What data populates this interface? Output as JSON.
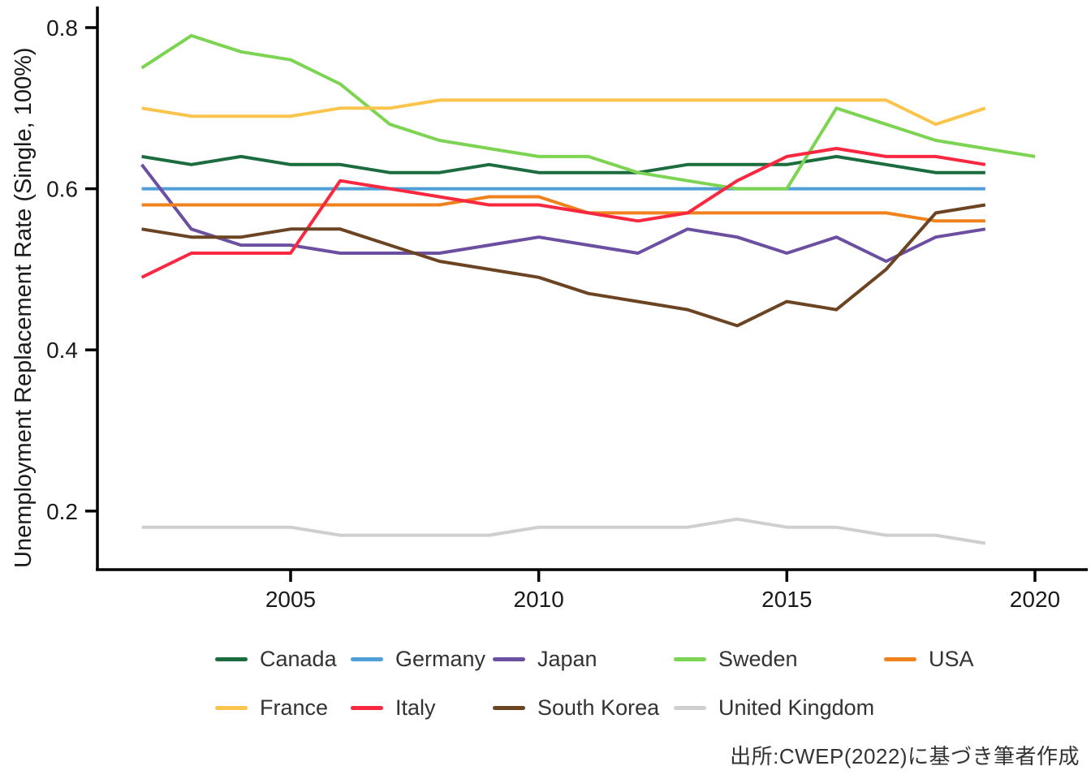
{
  "caption": "出所:CWEP(2022)に基づき筆者作成",
  "legend": {
    "rows": [
      [
        "Canada",
        "Germany",
        "Japan",
        "Sweden",
        "USA"
      ],
      [
        "France",
        "Italy",
        "South Korea",
        "United Kingdom"
      ]
    ]
  },
  "chart_data": {
    "type": "line",
    "title": "",
    "xlabel": "",
    "ylabel": "Unemployment Replacement Rate (Single, 100%)",
    "grid": false,
    "legend_position": "bottom",
    "xlim": [
      2001.1,
      2021.1
    ],
    "ylim": [
      0.13,
      0.83
    ],
    "x_ticks": [
      2005,
      2010,
      2015,
      2020
    ],
    "y_ticks": [
      0.2,
      0.4,
      0.6,
      0.8
    ],
    "start_year": 2002,
    "axis_color": "#000000",
    "series": [
      {
        "name": "Canada",
        "color": "#1b6d3f",
        "values": [
          0.64,
          0.63,
          0.64,
          0.63,
          0.63,
          0.62,
          0.62,
          0.63,
          0.62,
          0.62,
          0.62,
          0.63,
          0.63,
          0.63,
          0.64,
          0.63,
          0.62,
          0.62
        ]
      },
      {
        "name": "Germany",
        "color": "#4f9ed6",
        "values": [
          0.6,
          0.6,
          0.6,
          0.6,
          0.6,
          0.6,
          0.6,
          0.6,
          0.6,
          0.6,
          0.6,
          0.6,
          0.6,
          0.6,
          0.6,
          0.6,
          0.6,
          0.6
        ]
      },
      {
        "name": "Japan",
        "color": "#6b4fa1",
        "values": [
          0.63,
          0.55,
          0.53,
          0.53,
          0.52,
          0.52,
          0.52,
          0.53,
          0.54,
          0.53,
          0.52,
          0.55,
          0.54,
          0.52,
          0.54,
          0.51,
          0.54,
          0.55
        ]
      },
      {
        "name": "Sweden",
        "color": "#7cd452",
        "values": [
          0.75,
          0.79,
          0.77,
          0.76,
          0.73,
          0.68,
          0.66,
          0.65,
          0.64,
          0.64,
          0.62,
          0.61,
          0.6,
          0.6,
          0.7,
          0.68,
          0.66,
          0.65,
          0.64
        ]
      },
      {
        "name": "USA",
        "color": "#f0821e",
        "values": [
          0.58,
          0.58,
          0.58,
          0.58,
          0.58,
          0.58,
          0.58,
          0.59,
          0.59,
          0.57,
          0.57,
          0.57,
          0.57,
          0.57,
          0.57,
          0.57,
          0.56,
          0.56
        ]
      },
      {
        "name": "France",
        "color": "#fbc54d",
        "values": [
          0.7,
          0.69,
          0.69,
          0.69,
          0.7,
          0.7,
          0.71,
          0.71,
          0.71,
          0.71,
          0.71,
          0.71,
          0.71,
          0.71,
          0.71,
          0.71,
          0.68,
          0.7
        ]
      },
      {
        "name": "Italy",
        "color": "#f82840",
        "values": [
          0.49,
          0.52,
          0.52,
          0.52,
          0.61,
          0.6,
          0.59,
          0.58,
          0.58,
          0.57,
          0.56,
          0.57,
          0.61,
          0.64,
          0.65,
          0.64,
          0.64,
          0.63
        ]
      },
      {
        "name": "South Korea",
        "color": "#6b4423",
        "values": [
          0.55,
          0.54,
          0.54,
          0.55,
          0.55,
          0.53,
          0.51,
          0.5,
          0.49,
          0.47,
          0.46,
          0.45,
          0.43,
          0.46,
          0.45,
          0.5,
          0.57,
          0.58
        ]
      },
      {
        "name": "United Kingdom",
        "color": "#cfcfcf",
        "values": [
          0.18,
          0.18,
          0.18,
          0.18,
          0.17,
          0.17,
          0.17,
          0.17,
          0.18,
          0.18,
          0.18,
          0.18,
          0.19,
          0.18,
          0.18,
          0.17,
          0.17,
          0.16
        ]
      }
    ]
  }
}
